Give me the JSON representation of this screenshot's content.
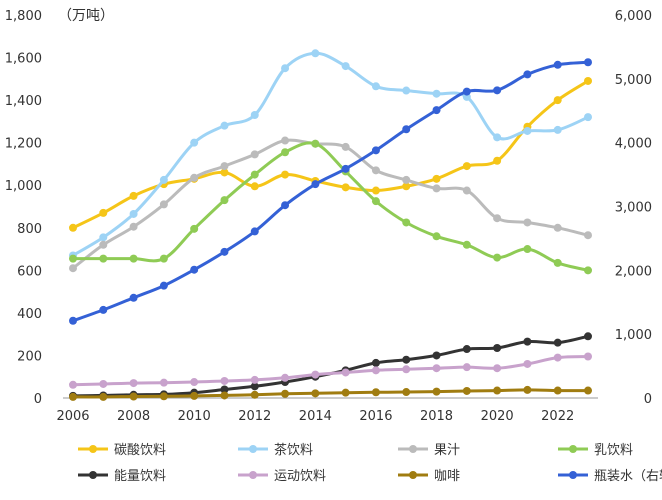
{
  "chart_data": {
    "type": "line",
    "unit_label": "（万吨）",
    "x": [
      2006,
      2007,
      2008,
      2009,
      2010,
      2011,
      2012,
      2013,
      2014,
      2015,
      2016,
      2017,
      2018,
      2019,
      2020,
      2021,
      2022,
      2023
    ],
    "x_ticks": [
      "2006",
      "2008",
      "2010",
      "2012",
      "2014",
      "2016",
      "2018",
      "2020",
      "2022"
    ],
    "y_left_ticks": [
      "0",
      "200",
      "400",
      "600",
      "800",
      "1,000",
      "1,200",
      "1,400",
      "1,600",
      "1,800"
    ],
    "y_right_ticks": [
      "0",
      "1,000",
      "2,000",
      "3,000",
      "4,000",
      "5,000",
      "6,000"
    ],
    "ylim_left": [
      0,
      1800
    ],
    "ylim_right": [
      0,
      6000
    ],
    "grid": false,
    "legend_position": "bottom",
    "series": [
      {
        "name": "碳酸饮料",
        "axis": "left",
        "color": "#F5C518",
        "values": [
          800,
          870,
          950,
          1005,
          1030,
          1060,
          995,
          1050,
          1020,
          990,
          975,
          995,
          1030,
          1090,
          1115,
          1275,
          1400,
          1490
        ]
      },
      {
        "name": "茶饮料",
        "axis": "left",
        "color": "#9DD3F5",
        "values": [
          670,
          755,
          865,
          1025,
          1200,
          1280,
          1330,
          1550,
          1620,
          1560,
          1465,
          1445,
          1430,
          1415,
          1225,
          1255,
          1260,
          1320
        ]
      },
      {
        "name": "果汁",
        "axis": "left",
        "color": "#BBBBBB",
        "values": [
          610,
          720,
          805,
          910,
          1035,
          1090,
          1145,
          1210,
          1195,
          1180,
          1070,
          1025,
          985,
          975,
          845,
          825,
          800,
          765
        ]
      },
      {
        "name": "乳饮料",
        "axis": "left",
        "color": "#8FCB55",
        "values": [
          655,
          655,
          655,
          655,
          795,
          930,
          1050,
          1155,
          1195,
          1065,
          925,
          825,
          760,
          720,
          660,
          700,
          635,
          600
        ]
      },
      {
        "name": "能量饮料",
        "axis": "left",
        "color": "#333333",
        "values": [
          10,
          12,
          15,
          17,
          25,
          40,
          55,
          75,
          100,
          130,
          165,
          180,
          200,
          230,
          235,
          265,
          260,
          290
        ]
      },
      {
        "name": "运动饮料",
        "axis": "left",
        "color": "#C8A2CC",
        "values": [
          62,
          66,
          70,
          72,
          75,
          80,
          85,
          95,
          110,
          120,
          130,
          135,
          140,
          145,
          140,
          160,
          190,
          195
        ]
      },
      {
        "name": "咖啡",
        "axis": "left",
        "color": "#A07C10",
        "values": [
          5,
          5,
          7,
          8,
          10,
          12,
          15,
          20,
          22,
          25,
          27,
          28,
          30,
          33,
          35,
          38,
          35,
          35
        ]
      },
      {
        "name": "瓶装水（右轴）",
        "axis": "right",
        "color": "#3461D6",
        "values": [
          1210,
          1380,
          1570,
          1760,
          2010,
          2290,
          2610,
          3020,
          3350,
          3590,
          3880,
          4210,
          4510,
          4800,
          4820,
          5070,
          5220,
          5260
        ]
      }
    ]
  }
}
